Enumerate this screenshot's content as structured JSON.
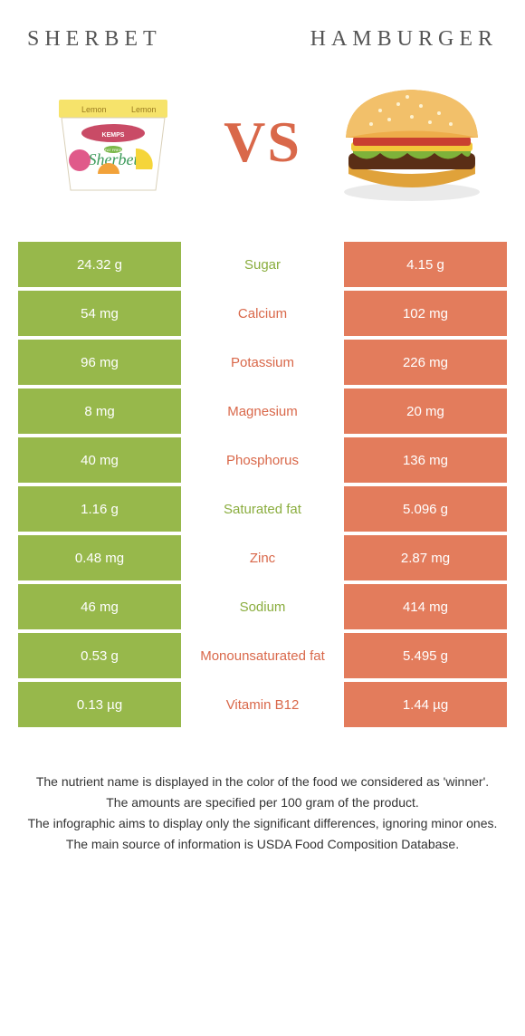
{
  "header": {
    "left_title": "Sherbet",
    "right_title": "Hamburger"
  },
  "hero": {
    "vs_text": "VS"
  },
  "colors": {
    "left_fill": "#97b84b",
    "right_fill": "#e37c5c",
    "label_green": "#8aad3e",
    "label_orange": "#d9684a",
    "header_text": "#555555"
  },
  "rows": [
    {
      "left": "24.32 g",
      "label": "Sugar",
      "right": "4.15 g",
      "winner": "left"
    },
    {
      "left": "54 mg",
      "label": "Calcium",
      "right": "102 mg",
      "winner": "right"
    },
    {
      "left": "96 mg",
      "label": "Potassium",
      "right": "226 mg",
      "winner": "right"
    },
    {
      "left": "8 mg",
      "label": "Magnesium",
      "right": "20 mg",
      "winner": "right"
    },
    {
      "left": "40 mg",
      "label": "Phosphorus",
      "right": "136 mg",
      "winner": "right"
    },
    {
      "left": "1.16 g",
      "label": "Saturated fat",
      "right": "5.096 g",
      "winner": "left"
    },
    {
      "left": "0.48 mg",
      "label": "Zinc",
      "right": "2.87 mg",
      "winner": "right"
    },
    {
      "left": "46 mg",
      "label": "Sodium",
      "right": "414 mg",
      "winner": "left"
    },
    {
      "left": "0.53 g",
      "label": "Monounsaturated fat",
      "right": "5.495 g",
      "winner": "right"
    },
    {
      "left": "0.13 µg",
      "label": "Vitamin B12",
      "right": "1.44 µg",
      "winner": "right"
    }
  ],
  "footnotes": [
    "The nutrient name is displayed in the color of the food we considered as 'winner'.",
    "The amounts are specified per 100 gram of the product.",
    "The infographic aims to display only the significant differences, ignoring minor ones.",
    "The main source of information is USDA Food Composition Database."
  ]
}
